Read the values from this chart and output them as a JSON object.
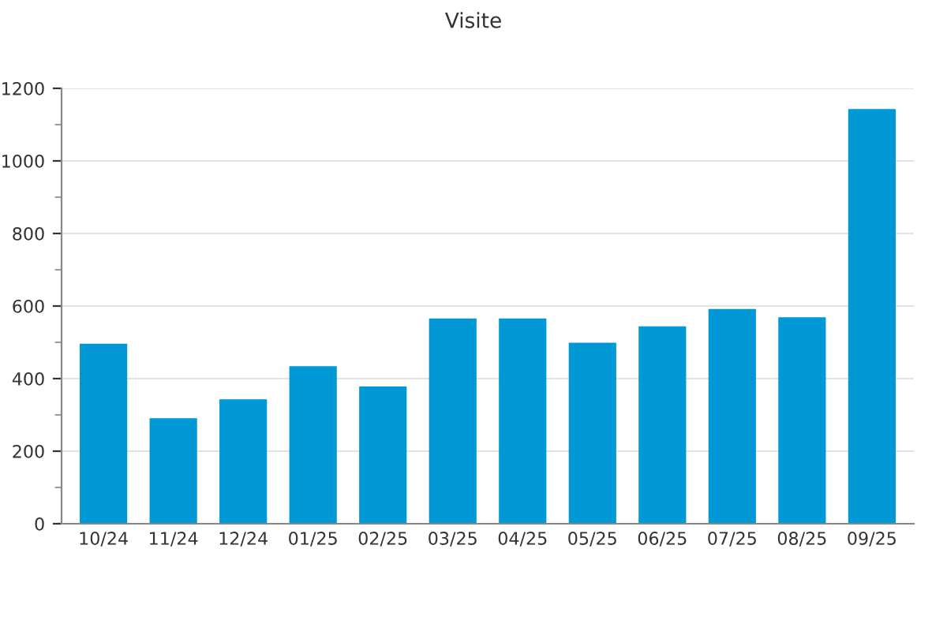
{
  "chart_data": {
    "type": "bar",
    "title": "Visite",
    "categories": [
      "10/24",
      "11/24",
      "12/24",
      "01/25",
      "02/25",
      "03/25",
      "04/25",
      "05/25",
      "06/25",
      "07/25",
      "08/25",
      "09/25"
    ],
    "values": [
      496,
      291,
      343,
      434,
      378,
      566,
      566,
      499,
      544,
      592,
      569,
      1143
    ],
    "color": "#0099d6",
    "ylim": [
      0,
      1200
    ],
    "yticks": [
      0,
      200,
      400,
      600,
      800,
      1000,
      1200
    ],
    "grid": "y"
  }
}
